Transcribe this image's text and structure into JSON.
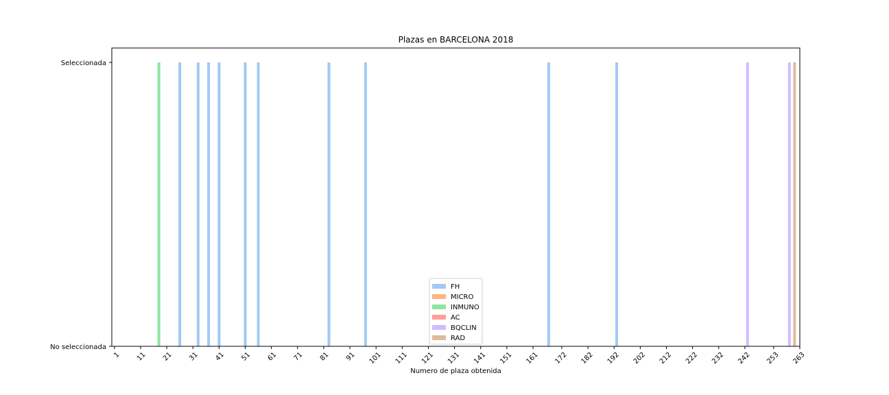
{
  "chart_data": {
    "type": "bar",
    "title": "Plazas en BARCELONA 2018",
    "xlabel": "Numero de plaza obtenida",
    "ylabel": "",
    "x_ticks": [
      "1",
      "11",
      "21",
      "31",
      "41",
      "51",
      "61",
      "71",
      "81",
      "91",
      "101",
      "111",
      "121",
      "131",
      "141",
      "151",
      "161",
      "172",
      "182",
      "192",
      "202",
      "212",
      "222",
      "232",
      "242",
      "253",
      "263"
    ],
    "y_ticks": [
      "No seleccionada",
      "Seleccionada"
    ],
    "xlim": [
      0,
      263
    ],
    "ylim": [
      0,
      1
    ],
    "grid": false,
    "legend_position": "lower center",
    "series": [
      {
        "name": "FH",
        "color": "#a1c9f4",
        "x": [
          26,
          33,
          37,
          41,
          51,
          56,
          83,
          97,
          167,
          193
        ]
      },
      {
        "name": "MICRO",
        "color": "#ffb482",
        "x": []
      },
      {
        "name": "INMUNO",
        "color": "#8de5a1",
        "x": [
          18
        ]
      },
      {
        "name": "AC",
        "color": "#ff9f9b",
        "x": []
      },
      {
        "name": "BQCLIN",
        "color": "#d0bbff",
        "x": [
          243,
          259
        ]
      },
      {
        "name": "RAD",
        "color": "#debb9b",
        "x": [
          261
        ]
      }
    ]
  }
}
